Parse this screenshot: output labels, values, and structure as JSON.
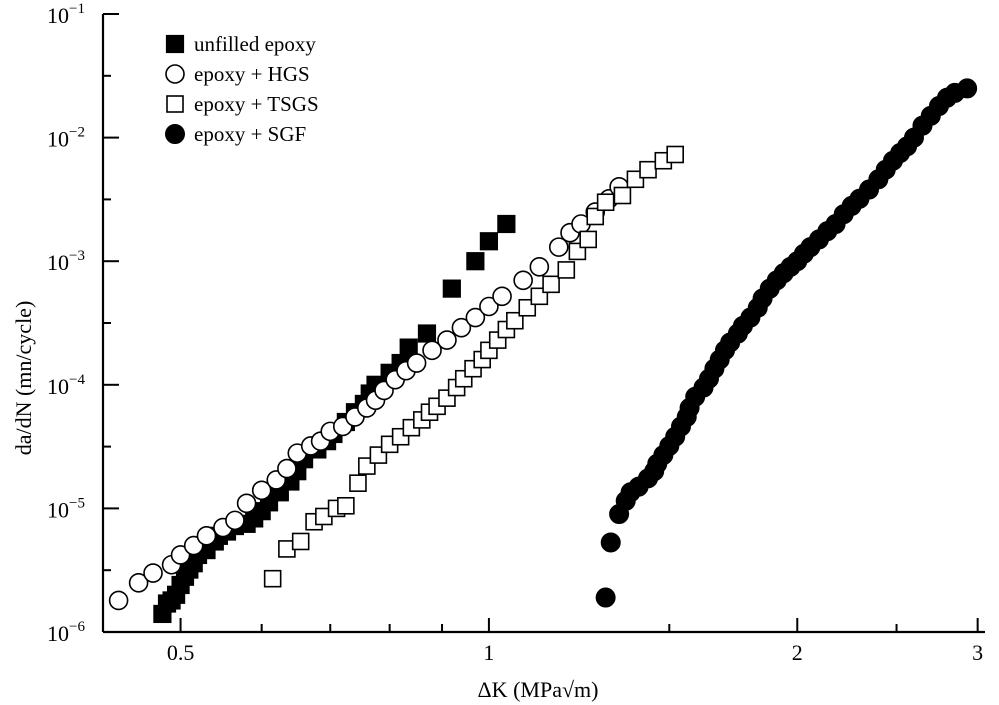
{
  "chart_data": {
    "type": "scatter",
    "title": "",
    "xlabel": "ΔK (MPa√m)",
    "ylabel": "da/dN (mn/cycle)",
    "xscale": "log",
    "yscale": "log",
    "xlim": [
      0.42,
      3.05
    ],
    "ylim": [
      1e-06,
      0.1
    ],
    "grid": false,
    "legend_position": "top-left",
    "x_ticks": [
      {
        "value": 0.5,
        "label": "0.5"
      },
      {
        "value": 1,
        "label": "1"
      },
      {
        "value": 2,
        "label": "2"
      },
      {
        "value": 3,
        "label": "3"
      }
    ],
    "x_minor_ticks": [
      0.6,
      0.7,
      0.8,
      0.9,
      1.5,
      2.5
    ],
    "y_ticks": [
      {
        "value": 1e-06,
        "base": "10",
        "exp": "−6"
      },
      {
        "value": 1e-05,
        "base": "10",
        "exp": "−5"
      },
      {
        "value": 0.0001,
        "base": "10",
        "exp": "−4"
      },
      {
        "value": 0.001,
        "base": "10",
        "exp": "−3"
      },
      {
        "value": 0.01,
        "base": "10",
        "exp": "−2"
      },
      {
        "value": 0.1,
        "base": "10",
        "exp": "−1"
      }
    ],
    "series": [
      {
        "name": "unfilled epoxy",
        "marker": "filled-square",
        "color": "#000000",
        "points": [
          [
            0.48,
            1.4e-06
          ],
          [
            0.485,
            1.7e-06
          ],
          [
            0.49,
            1.8e-06
          ],
          [
            0.495,
            2e-06
          ],
          [
            0.5,
            2.4e-06
          ],
          [
            0.505,
            2.8e-06
          ],
          [
            0.51,
            3.2e-06
          ],
          [
            0.515,
            3.6e-06
          ],
          [
            0.52,
            4.2e-06
          ],
          [
            0.53,
            4.6e-06
          ],
          [
            0.54,
            5.4e-06
          ],
          [
            0.545,
            6e-06
          ],
          [
            0.555,
            6.5e-06
          ],
          [
            0.565,
            7.2e-06
          ],
          [
            0.58,
            7.5e-06
          ],
          [
            0.59,
            8.3e-06
          ],
          [
            0.6,
            9.5e-06
          ],
          [
            0.61,
            1.12e-05
          ],
          [
            0.625,
            1.35e-05
          ],
          [
            0.64,
            1.65e-05
          ],
          [
            0.65,
            2e-05
          ],
          [
            0.66,
            2.5e-05
          ],
          [
            0.68,
            3e-05
          ],
          [
            0.695,
            3.5e-05
          ],
          [
            0.705,
            4e-05
          ],
          [
            0.725,
            5e-05
          ],
          [
            0.74,
            6e-05
          ],
          [
            0.755,
            7e-05
          ],
          [
            0.765,
            8.5e-05
          ],
          [
            0.775,
            0.0001
          ],
          [
            0.8,
            0.000125
          ],
          [
            0.82,
            0.00015
          ],
          [
            0.835,
            0.0002
          ],
          [
            0.87,
            0.00026
          ],
          [
            0.92,
            0.0006
          ],
          [
            0.97,
            0.001
          ],
          [
            1.0,
            0.00145
          ],
          [
            1.04,
            0.002
          ]
        ]
      },
      {
        "name": "epoxy + HGS",
        "marker": "open-circle",
        "color": "#000000",
        "points": [
          [
            0.435,
            1.8e-06
          ],
          [
            0.455,
            2.5e-06
          ],
          [
            0.47,
            3e-06
          ],
          [
            0.49,
            3.5e-06
          ],
          [
            0.5,
            4.2e-06
          ],
          [
            0.515,
            5e-06
          ],
          [
            0.53,
            6e-06
          ],
          [
            0.55,
            7e-06
          ],
          [
            0.565,
            8e-06
          ],
          [
            0.58,
            1.1e-05
          ],
          [
            0.6,
            1.4e-05
          ],
          [
            0.62,
            1.7e-05
          ],
          [
            0.635,
            2.1e-05
          ],
          [
            0.65,
            2.8e-05
          ],
          [
            0.67,
            3.2e-05
          ],
          [
            0.685,
            3.5e-05
          ],
          [
            0.7,
            4.2e-05
          ],
          [
            0.72,
            4.6e-05
          ],
          [
            0.74,
            5.5e-05
          ],
          [
            0.76,
            6.5e-05
          ],
          [
            0.775,
            7.5e-05
          ],
          [
            0.79,
            9e-05
          ],
          [
            0.81,
            0.00011
          ],
          [
            0.83,
            0.00013
          ],
          [
            0.85,
            0.00015
          ],
          [
            0.88,
            0.00019
          ],
          [
            0.91,
            0.00023
          ],
          [
            0.94,
            0.00029
          ],
          [
            0.97,
            0.00035
          ],
          [
            1.0,
            0.00043
          ],
          [
            1.03,
            0.00052
          ],
          [
            1.08,
            0.0007
          ],
          [
            1.12,
            0.0009
          ],
          [
            1.17,
            0.0013
          ],
          [
            1.2,
            0.0017
          ],
          [
            1.23,
            0.002
          ],
          [
            1.27,
            0.0025
          ],
          [
            1.31,
            0.0032
          ],
          [
            1.34,
            0.004
          ]
        ]
      },
      {
        "name": "epoxy + TSGS",
        "marker": "open-square",
        "color": "#000000",
        "points": [
          [
            0.615,
            2.7e-06
          ],
          [
            0.635,
            4.7e-06
          ],
          [
            0.655,
            5.4e-06
          ],
          [
            0.675,
            7.8e-06
          ],
          [
            0.69,
            8.6e-06
          ],
          [
            0.71,
            1e-05
          ],
          [
            0.725,
            1.05e-05
          ],
          [
            0.745,
            1.6e-05
          ],
          [
            0.76,
            2.2e-05
          ],
          [
            0.78,
            2.7e-05
          ],
          [
            0.8,
            3.3e-05
          ],
          [
            0.82,
            3.8e-05
          ],
          [
            0.84,
            4.5e-05
          ],
          [
            0.86,
            5.2e-05
          ],
          [
            0.875,
            6e-05
          ],
          [
            0.89,
            6.7e-05
          ],
          [
            0.91,
            7.8e-05
          ],
          [
            0.93,
            9.5e-05
          ],
          [
            0.945,
            0.000112
          ],
          [
            0.965,
            0.000135
          ],
          [
            0.985,
            0.00016
          ],
          [
            1.0,
            0.00019
          ],
          [
            1.02,
            0.00023
          ],
          [
            1.04,
            0.00028
          ],
          [
            1.06,
            0.00033
          ],
          [
            1.09,
            0.00042
          ],
          [
            1.12,
            0.00052
          ],
          [
            1.15,
            0.00065
          ],
          [
            1.19,
            0.00085
          ],
          [
            1.22,
            0.0012
          ],
          [
            1.25,
            0.0015
          ],
          [
            1.27,
            0.0023
          ],
          [
            1.3,
            0.003
          ],
          [
            1.35,
            0.0034
          ],
          [
            1.39,
            0.0046
          ],
          [
            1.43,
            0.0055
          ],
          [
            1.48,
            0.0065
          ],
          [
            1.52,
            0.0073
          ]
        ]
      },
      {
        "name": "epoxy + SGF",
        "marker": "filled-circle",
        "color": "#000000",
        "points": [
          [
            1.3,
            1.9e-06
          ],
          [
            1.315,
            5.3e-06
          ],
          [
            1.34,
            9e-06
          ],
          [
            1.36,
            1.15e-05
          ],
          [
            1.375,
            1.35e-05
          ],
          [
            1.4,
            1.5e-05
          ],
          [
            1.43,
            1.75e-05
          ],
          [
            1.45,
            2e-05
          ],
          [
            1.46,
            2.3e-05
          ],
          [
            1.48,
            2.7e-05
          ],
          [
            1.5,
            3.2e-05
          ],
          [
            1.52,
            3.8e-05
          ],
          [
            1.54,
            4.6e-05
          ],
          [
            1.56,
            5.5e-05
          ],
          [
            1.57,
            6.5e-05
          ],
          [
            1.59,
            8e-05
          ],
          [
            1.62,
            9.5e-05
          ],
          [
            1.64,
            0.000112
          ],
          [
            1.66,
            0.000135
          ],
          [
            1.68,
            0.00016
          ],
          [
            1.7,
            0.00019
          ],
          [
            1.72,
            0.00022
          ],
          [
            1.75,
            0.00026
          ],
          [
            1.77,
            0.0003
          ],
          [
            1.8,
            0.00035
          ],
          [
            1.83,
            0.00042
          ],
          [
            1.85,
            0.0005
          ],
          [
            1.88,
            0.0006
          ],
          [
            1.91,
            0.0007
          ],
          [
            1.94,
            0.0008
          ],
          [
            1.97,
            0.0009
          ],
          [
            2.0,
            0.001
          ],
          [
            2.03,
            0.00115
          ],
          [
            2.06,
            0.0013
          ],
          [
            2.1,
            0.0015
          ],
          [
            2.14,
            0.00175
          ],
          [
            2.18,
            0.002
          ],
          [
            2.22,
            0.0024
          ],
          [
            2.26,
            0.0028
          ],
          [
            2.3,
            0.0032
          ],
          [
            2.35,
            0.0038
          ],
          [
            2.4,
            0.0046
          ],
          [
            2.44,
            0.0055
          ],
          [
            2.48,
            0.0065
          ],
          [
            2.52,
            0.0075
          ],
          [
            2.56,
            0.0085
          ],
          [
            2.6,
            0.01
          ],
          [
            2.65,
            0.0125
          ],
          [
            2.7,
            0.015
          ],
          [
            2.75,
            0.018
          ],
          [
            2.8,
            0.021
          ],
          [
            2.85,
            0.023
          ],
          [
            2.93,
            0.025
          ]
        ]
      }
    ]
  }
}
